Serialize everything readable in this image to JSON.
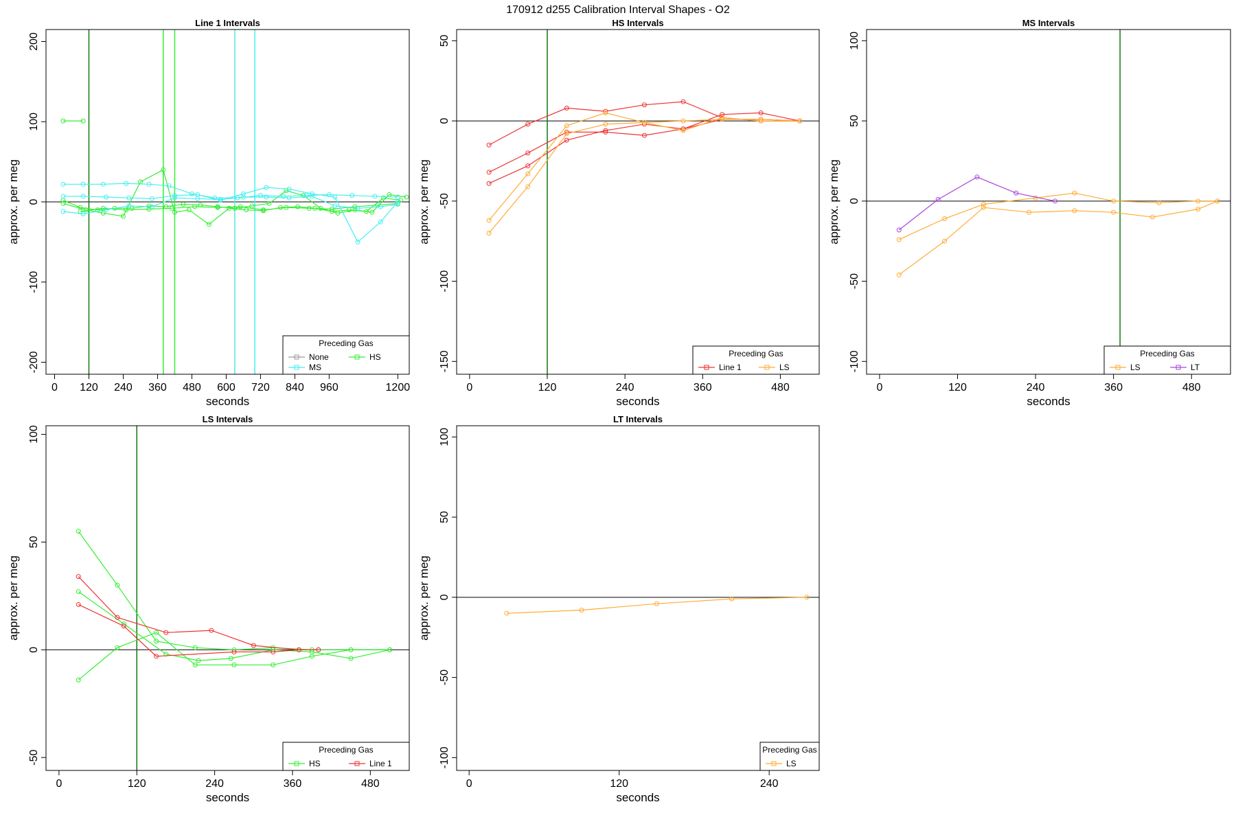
{
  "figure_title": "170912   d255   Calibration Interval Shapes - O2",
  "colors": {
    "None": "#999999",
    "HS": "#33ee33",
    "MS": "#44eeee",
    "Line 1": "#ee3333",
    "LS": "#ffaa33",
    "LT": "#aa44dd",
    "vline_dark": "#117711",
    "hline": "#000000"
  },
  "chart_data": [
    {
      "type": "line",
      "title": "Line 1 Intervals",
      "xlabel": "seconds",
      "ylabel": "approx. per meg",
      "xlim": [
        -30,
        1240
      ],
      "ylim": [
        -215,
        215
      ],
      "xticks": [
        0,
        120,
        240,
        360,
        480,
        600,
        720,
        840,
        960,
        1200
      ],
      "yticks": [
        -200,
        -100,
        0,
        100,
        200
      ],
      "hline": 0,
      "vlines": [
        {
          "x": 120,
          "color": "vline_dark"
        },
        {
          "x": 380,
          "color": "HS"
        },
        {
          "x": 420,
          "color": "HS"
        },
        {
          "x": 630,
          "color": "MS"
        },
        {
          "x": 700,
          "color": "MS"
        }
      ],
      "legend": {
        "title": "Preceding Gas",
        "entries": [
          "None",
          "HS",
          "MS"
        ],
        "position": "bottom-right"
      },
      "series": [
        {
          "name": "HS",
          "x": [
            30,
            100
          ],
          "y": [
            101,
            101
          ]
        },
        {
          "name": "HS",
          "x": [
            30,
            90,
            150,
            210,
            270,
            330,
            390,
            450,
            510,
            570,
            630,
            690,
            750,
            810,
            870,
            930,
            990,
            1050,
            1110,
            1170,
            1230
          ],
          "y": [
            2,
            -7,
            -10,
            -8,
            -8,
            -5,
            -6,
            -3,
            -4,
            -6,
            -8,
            -5,
            -2,
            14,
            8,
            -8,
            -14,
            -10,
            -13,
            9,
            6
          ]
        },
        {
          "name": "HS",
          "x": [
            30,
            110,
            170,
            240,
            300,
            380,
            420,
            470,
            540,
            610,
            670,
            730,
            790,
            850,
            910,
            970,
            1030,
            1090,
            1150,
            1210
          ],
          "y": [
            -2,
            -10,
            -14,
            -18,
            25,
            40,
            -13,
            -10,
            -28,
            -8,
            -10,
            -11,
            -7,
            -6,
            -8,
            -12,
            -10,
            -12,
            5,
            2
          ]
        },
        {
          "name": "HS",
          "x": [
            90,
            170,
            250,
            330,
            410,
            490,
            570,
            650,
            730,
            810,
            890,
            970,
            1050,
            1130,
            1200
          ],
          "y": [
            -12,
            -8,
            -10,
            -9,
            -8,
            -6,
            -7,
            -6,
            -10,
            -7,
            -8,
            -9,
            -6,
            -4,
            -2
          ]
        },
        {
          "name": "MS",
          "x": [
            30,
            100,
            170,
            250,
            330,
            400,
            480,
            560,
            640,
            720,
            800,
            880,
            960,
            1040,
            1120,
            1200
          ],
          "y": [
            22,
            22,
            22,
            23,
            22,
            20,
            10,
            5,
            5,
            8,
            7,
            8,
            9,
            8,
            7,
            6
          ]
        },
        {
          "name": "MS",
          "x": [
            30,
            100,
            180,
            260,
            340,
            420,
            500,
            580,
            660,
            740,
            820,
            900,
            980,
            1060,
            1140,
            1200
          ],
          "y": [
            7,
            7,
            6,
            5,
            4,
            8,
            9,
            2,
            10,
            18,
            16,
            10,
            6,
            -50,
            -25,
            0
          ]
        },
        {
          "name": "MS",
          "x": [
            30,
            100,
            180,
            260,
            340,
            420,
            500,
            580,
            660,
            740,
            820,
            900,
            980,
            1060,
            1140,
            1200
          ],
          "y": [
            -12,
            -15,
            -10,
            -5,
            -6,
            5,
            4,
            3,
            6,
            6,
            5,
            7,
            -5,
            -8,
            -6,
            -3
          ]
        }
      ]
    },
    {
      "type": "line",
      "title": "HS Intervals",
      "xlabel": "seconds",
      "ylabel": "approx. per meg",
      "xlim": [
        -20,
        540
      ],
      "ylim": [
        -158,
        57
      ],
      "xticks": [
        0,
        120,
        240,
        360,
        480
      ],
      "yticks": [
        -150,
        -100,
        -50,
        0,
        50
      ],
      "hline": 0,
      "vlines": [
        {
          "x": 120,
          "color": "vline_dark"
        }
      ],
      "legend": {
        "title": "Preceding Gas",
        "entries": [
          "Line 1",
          "LS"
        ],
        "position": "bottom-right"
      },
      "series": [
        {
          "name": "Line 1",
          "x": [
            30,
            90,
            150,
            210,
            270,
            330,
            390,
            450,
            510
          ],
          "y": [
            -15,
            -2,
            8,
            6,
            10,
            12,
            2,
            0,
            0
          ]
        },
        {
          "name": "Line 1",
          "x": [
            30,
            90,
            150,
            210,
            270,
            330,
            390,
            450,
            510
          ],
          "y": [
            -32,
            -20,
            -7,
            -7,
            -9,
            -5,
            4,
            5,
            0
          ]
        },
        {
          "name": "Line 1",
          "x": [
            30,
            90,
            150,
            210,
            270,
            330,
            390,
            450,
            510
          ],
          "y": [
            -39,
            -28,
            -12,
            -6,
            -2,
            -5,
            1,
            1,
            0
          ]
        },
        {
          "name": "LS",
          "x": [
            30,
            90,
            150,
            210,
            270,
            330,
            390,
            450,
            510
          ],
          "y": [
            -62,
            -33,
            -3,
            5,
            -1,
            -6,
            2,
            0,
            0
          ]
        },
        {
          "name": "LS",
          "x": [
            30,
            90,
            150,
            210,
            270,
            330,
            390,
            450,
            510
          ],
          "y": [
            -70,
            -41,
            -8,
            -2,
            -1,
            0,
            1,
            1,
            0
          ]
        }
      ]
    },
    {
      "type": "line",
      "title": "MS Intervals",
      "xlabel": "seconds",
      "ylabel": "approx. per meg",
      "xlim": [
        -20,
        540
      ],
      "ylim": [
        -108,
        107
      ],
      "xticks": [
        0,
        120,
        240,
        360,
        480
      ],
      "yticks": [
        -100,
        -50,
        0,
        50,
        100
      ],
      "hline": 0,
      "vlines": [
        {
          "x": 370,
          "color": "vline_dark"
        }
      ],
      "legend": {
        "title": "Preceding Gas",
        "entries": [
          "LS",
          "LT"
        ],
        "position": "bottom-right"
      },
      "series": [
        {
          "name": "LS",
          "x": [
            30,
            100,
            160,
            240,
            300,
            360,
            430,
            490,
            520
          ],
          "y": [
            -24,
            -11,
            -2,
            2,
            5,
            0,
            -1,
            0,
            0
          ]
        },
        {
          "name": "LS",
          "x": [
            30,
            100,
            160,
            230,
            300,
            360,
            420,
            490,
            520
          ],
          "y": [
            -46,
            -25,
            -4,
            -7,
            -6,
            -7,
            -10,
            -5,
            0
          ]
        },
        {
          "name": "LT",
          "x": [
            30,
            90,
            150,
            210,
            270
          ],
          "y": [
            -18,
            1,
            15,
            5,
            0
          ]
        }
      ]
    },
    {
      "type": "line",
      "title": "LS Intervals",
      "xlabel": "seconds",
      "ylabel": "approx. per meg",
      "xlim": [
        -20,
        540
      ],
      "ylim": [
        -56,
        104
      ],
      "xticks": [
        0,
        120,
        240,
        360,
        480
      ],
      "yticks": [
        -50,
        0,
        50,
        100
      ],
      "hline": 0,
      "vlines": [
        {
          "x": 120,
          "color": "vline_dark"
        }
      ],
      "legend": {
        "title": "Preceding Gas",
        "entries": [
          "HS",
          "Line 1"
        ],
        "position": "bottom-right"
      },
      "series": [
        {
          "name": "HS",
          "x": [
            30,
            90,
            150,
            210,
            270,
            330,
            390,
            450,
            510
          ],
          "y": [
            55,
            30,
            4,
            1,
            0,
            1,
            0,
            0,
            0
          ]
        },
        {
          "name": "HS",
          "x": [
            30,
            100,
            165,
            215,
            265,
            330,
            390,
            450,
            510
          ],
          "y": [
            27,
            12,
            -2,
            -5,
            -4,
            0,
            -1,
            -4,
            0
          ]
        },
        {
          "name": "HS",
          "x": [
            30,
            90,
            150,
            210,
            270,
            330,
            390,
            450,
            510
          ],
          "y": [
            -14,
            1,
            8,
            -7,
            -7,
            -7,
            -3,
            0,
            0
          ]
        },
        {
          "name": "Line 1",
          "x": [
            30,
            90,
            165,
            235,
            300,
            370,
            400
          ],
          "y": [
            34,
            15,
            8,
            9,
            2,
            0,
            0
          ]
        },
        {
          "name": "Line 1",
          "x": [
            30,
            100,
            150,
            270,
            330,
            370,
            400
          ],
          "y": [
            21,
            11,
            -3,
            -1,
            -1,
            0,
            0
          ]
        }
      ]
    },
    {
      "type": "line",
      "title": "LT Intervals",
      "xlabel": "seconds",
      "ylabel": "approx. per meg",
      "xlim": [
        -10,
        280
      ],
      "ylim": [
        -108,
        107
      ],
      "xticks": [
        0,
        120,
        240
      ],
      "yticks": [
        -100,
        -50,
        0,
        50,
        100
      ],
      "hline": 0,
      "vlines": [],
      "legend": {
        "title": "Preceding Gas",
        "entries": [
          "LS"
        ],
        "position": "bottom-right"
      },
      "series": [
        {
          "name": "LS",
          "x": [
            30,
            90,
            150,
            210,
            270
          ],
          "y": [
            -10,
            -8,
            -4,
            -1,
            0
          ]
        }
      ]
    }
  ]
}
